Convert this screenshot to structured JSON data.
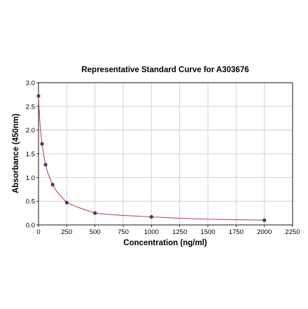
{
  "chart_data": {
    "type": "scatter",
    "title": "Representative Standard Curve for A303676",
    "xlabel": "Concentration (ng/ml)",
    "ylabel": "Absorbance (450nm)",
    "xlim": [
      0,
      2250
    ],
    "ylim": [
      0,
      3.0
    ],
    "x_ticks": [
      "0",
      "250",
      "500",
      "750",
      "1000",
      "1250",
      "1500",
      "1750",
      "2000",
      "2250"
    ],
    "y_ticks": [
      "0.0",
      "0.5",
      "1.0",
      "1.5",
      "2.0",
      "2.5",
      "3.0"
    ],
    "grid": true,
    "legend": "none",
    "series": [
      {
        "x": [
          0,
          31.25,
          62.5,
          125,
          250,
          500,
          1000,
          2000
        ],
        "y": [
          2.72,
          1.71,
          1.27,
          0.85,
          0.47,
          0.25,
          0.17,
          0.1
        ]
      }
    ],
    "fit_curve": {
      "x": [
        0,
        5,
        10,
        15,
        20,
        31.25,
        40,
        50,
        62.5,
        80,
        100,
        125,
        160,
        200,
        250,
        300,
        375,
        500,
        625,
        750,
        1000,
        1250,
        1500,
        1750,
        2000
      ],
      "y": [
        2.72,
        2.45,
        2.25,
        2.09,
        1.96,
        1.71,
        1.56,
        1.42,
        1.27,
        1.12,
        0.99,
        0.85,
        0.71,
        0.6,
        0.47,
        0.42,
        0.35,
        0.25,
        0.22,
        0.2,
        0.17,
        0.14,
        0.12,
        0.11,
        0.1
      ]
    },
    "colors": {
      "curve": "#b5476a",
      "points": "#3a3f72",
      "grid": "#c8c8c8"
    }
  }
}
